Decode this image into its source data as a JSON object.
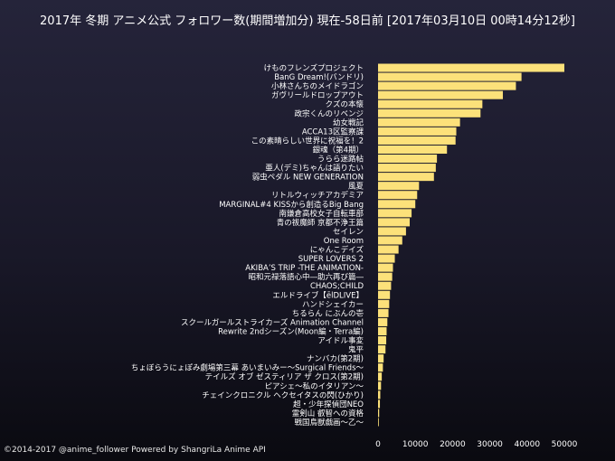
{
  "chart_data": {
    "type": "bar",
    "orientation": "horizontal",
    "title": "2017年 冬期 アニメ公式 フォロワー数(期間増加分) 現在-58日前 [2017年03月10日 00時14分12秒]",
    "categories": [
      "けものフレンズプロジェクト",
      "BanG Dream!(バンドリ)",
      "小林さんちのメイドラゴン",
      "ガヴリールドロップアウト",
      "クズの本懐",
      "政宗くんのリベンジ",
      "幼女戦記",
      "ACCA13区監察課",
      "この素晴らしい世界に祝福を！2",
      "銀魂（第4期）",
      "うらら迷路帖",
      "亜人(デミ)ちゃんは語りたい",
      "弱虫ペダル NEW GENERATION",
      "風夏",
      "リトルウィッチアカデミア",
      "MARGINAL#4 KISSから創造るBig Bang",
      "南鎌倉高校女子自転車部",
      "青の祓魔師 京都不浄王篇",
      "セイレン",
      "One Room",
      "にゃんこデイズ",
      "SUPER LOVERS 2",
      "AKIBA’S TRIP -THE ANIMATION-",
      "昭和元禄落語心中―助六再び篇―",
      "CHAOS;CHILD",
      "エルドライブ【ēlDLIVE】",
      "ハンドシェイカー",
      "ちるらん にぶんの壱",
      "スクールガールストライカーズ Animation Channel",
      "Rewrite 2ndシーズン(Moon編・Terra編)",
      "アイドル事変",
      "鬼平",
      "ナンバカ(第2期)",
      "ちょぼらうにょぽみ劇場第三幕 あいまいみー～Surgical Friends～",
      "テイルズ オブ ゼスティリア ザ クロス(第2期)",
      "ピアシェ～私のイタリアン～",
      "チェインクロニクル ヘクセイタスの閃(ひかり)",
      "超・少年探偵団NEO",
      "霊剣山 叡智への資格",
      "戦国鳥獣戯画～乙～"
    ],
    "values": [
      50000,
      38500,
      37000,
      33500,
      28000,
      27500,
      22000,
      21000,
      20800,
      18500,
      15800,
      15500,
      15000,
      11000,
      10500,
      10000,
      9000,
      8500,
      7500,
      6500,
      5500,
      4500,
      4000,
      3800,
      3500,
      3200,
      3000,
      2800,
      2500,
      2300,
      2200,
      2000,
      1500,
      1300,
      1000,
      800,
      600,
      500,
      300,
      200
    ],
    "xticks": [
      "0",
      "10000",
      "20000",
      "30000",
      "40000",
      "50000"
    ],
    "xlim": [
      0,
      50000
    ],
    "xlabel": "",
    "ylabel": "",
    "grid": false,
    "bar_color": "#fce17a"
  },
  "footer": "©2014-2017 @anime_follower Powered by ShangriLa Anime API"
}
